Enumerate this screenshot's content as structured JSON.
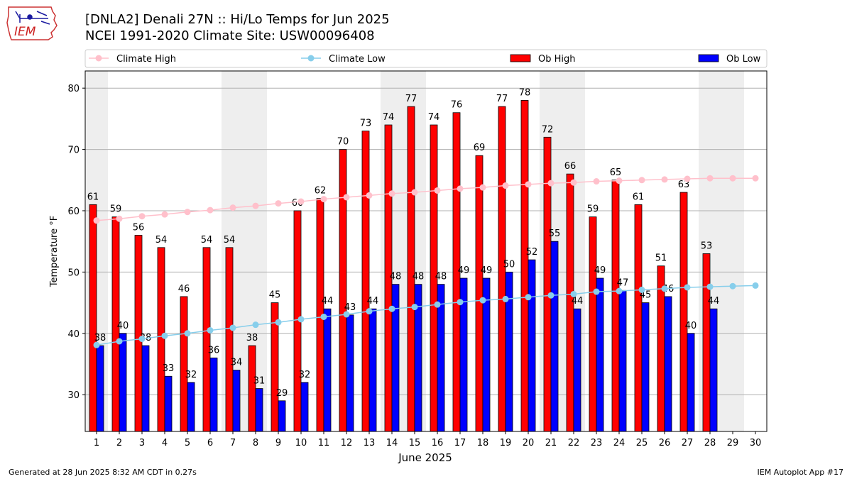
{
  "title_line1": "[DNLA2] Denali 27N :: Hi/Lo Temps for Jun 2025",
  "title_line2": "NCEI 1991-2020 Climate Site: USW00096408",
  "logo_text": "IEM",
  "footer_left": "Generated at 28 Jun 2025 8:32 AM CDT in 0.27s",
  "footer_right": "IEM Autoplot App #17",
  "colors": {
    "ob_high": "#ff0000",
    "ob_low": "#0000ff",
    "climate_high": "#ffc0cb",
    "climate_low": "#87ceeb",
    "weekend_shade": "#eeeeee",
    "grid": "#b0b0b0"
  },
  "chart_data": {
    "type": "bar",
    "xlabel": "June 2025",
    "ylabel": "Temperature °F",
    "ylim": [
      24,
      82.8
    ],
    "yticks": [
      30,
      40,
      50,
      60,
      70,
      80
    ],
    "grid": "horizontal",
    "legend_position": "top",
    "categories": [
      1,
      2,
      3,
      4,
      5,
      6,
      7,
      8,
      9,
      10,
      11,
      12,
      13,
      14,
      15,
      16,
      17,
      18,
      19,
      20,
      21,
      22,
      23,
      24,
      25,
      26,
      27,
      28,
      29,
      30
    ],
    "shaded_days": [
      1,
      7,
      8,
      14,
      15,
      21,
      22,
      28,
      29
    ],
    "series": [
      {
        "name": "Ob High",
        "kind": "bar",
        "color": "#ff0000",
        "values": [
          61,
          59,
          56,
          54,
          46,
          54,
          54,
          38,
          45,
          60,
          62,
          70,
          73,
          74,
          77,
          74,
          76,
          69,
          77,
          78,
          72,
          66,
          59,
          65,
          61,
          51,
          63,
          53,
          null,
          null
        ]
      },
      {
        "name": "Ob Low",
        "kind": "bar",
        "color": "#0000ff",
        "values": [
          38,
          40,
          38,
          33,
          32,
          36,
          34,
          31,
          29,
          32,
          44,
          43,
          44,
          48,
          48,
          48,
          49,
          49,
          50,
          52,
          55,
          44,
          49,
          47,
          45,
          46,
          40,
          44,
          null,
          null
        ]
      },
      {
        "name": "Climate High",
        "kind": "line",
        "color": "#ffc0cb",
        "values": [
          58.4,
          58.7,
          59.1,
          59.4,
          59.8,
          60.1,
          60.5,
          60.8,
          61.2,
          61.5,
          61.9,
          62.2,
          62.5,
          62.8,
          63.0,
          63.3,
          63.6,
          63.8,
          64.1,
          64.3,
          64.5,
          64.6,
          64.8,
          64.9,
          65.0,
          65.1,
          65.2,
          65.3,
          65.3,
          65.3
        ]
      },
      {
        "name": "Climate Low",
        "kind": "line",
        "color": "#87ceeb",
        "values": [
          38.1,
          38.7,
          39.1,
          39.6,
          40.0,
          40.5,
          40.9,
          41.4,
          41.8,
          42.3,
          42.7,
          43.1,
          43.6,
          44.0,
          44.3,
          44.7,
          45.1,
          45.4,
          45.6,
          45.9,
          46.2,
          46.4,
          46.8,
          46.9,
          47.1,
          47.3,
          47.5,
          47.6,
          47.7,
          47.8
        ]
      }
    ]
  }
}
